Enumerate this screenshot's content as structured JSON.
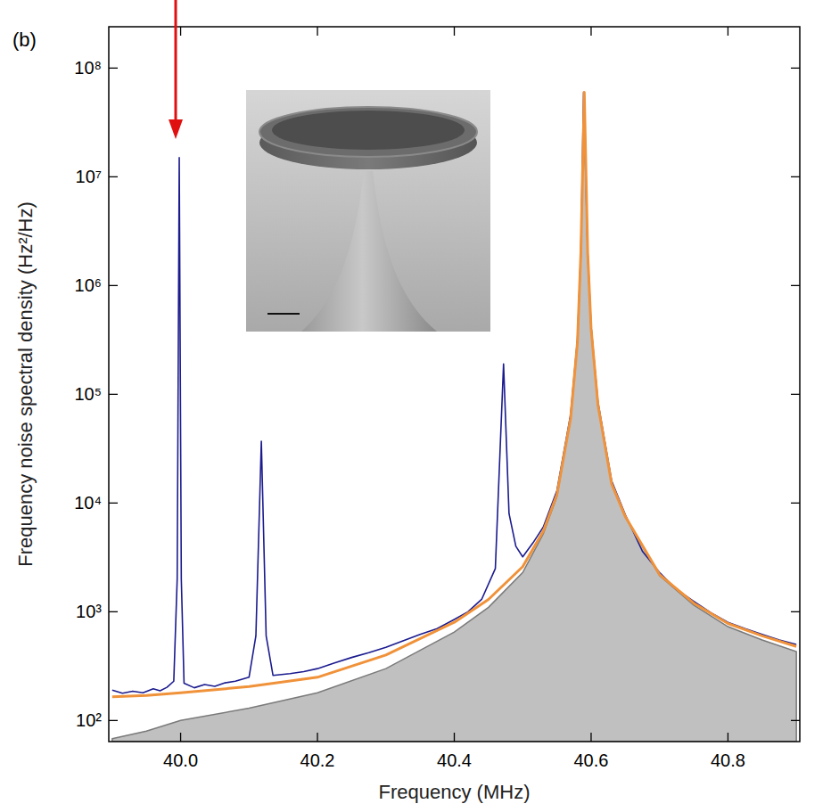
{
  "chart_data": {
    "type": "line",
    "annotations": [
      "(b)"
    ],
    "x_label": "Frequency (MHz)",
    "y_label": "Frequency noise spectral density (Hz²/Hz)",
    "log": "y",
    "grid": false,
    "xlim": [
      39.895,
      40.905
    ],
    "ylim": [
      64,
      240000000
    ],
    "xticks": [
      {
        "value": 40.0,
        "label": "40.0"
      },
      {
        "value": 40.2,
        "label": "40.2"
      },
      {
        "value": 40.4,
        "label": "40.4"
      },
      {
        "value": 40.6,
        "label": "40.6"
      },
      {
        "value": 40.8,
        "label": "40.8"
      }
    ],
    "yticks": [
      {
        "value": 100,
        "label": "10²"
      },
      {
        "value": 1000,
        "label": "10³"
      },
      {
        "value": 10000,
        "label": "10⁴"
      },
      {
        "value": 100000,
        "label": "10⁵"
      },
      {
        "value": 1000000,
        "label": "10⁶"
      },
      {
        "value": 10000000,
        "label": "10⁷"
      },
      {
        "value": 100000000,
        "label": "10⁸"
      }
    ],
    "series": [
      {
        "type": "area",
        "color": "#c0c0c0",
        "x": [
          39.9,
          39.95,
          40.0,
          40.1,
          40.2,
          40.3,
          40.4,
          40.45,
          40.5,
          40.53,
          40.55,
          40.57,
          40.58,
          40.585,
          40.59,
          40.595,
          40.6,
          40.61,
          40.63,
          40.65,
          40.7,
          40.75,
          40.8,
          40.85,
          40.9
        ],
        "values": [
          68,
          80,
          100,
          130,
          180,
          300,
          650,
          1100,
          2300,
          5200,
          11500,
          60000,
          300000,
          2000000,
          60000000,
          2000000,
          400000,
          80000,
          15000,
          7400,
          2150,
          1150,
          730,
          550,
          430
        ]
      },
      {
        "type": "line",
        "color": "#1b1b8f",
        "x": [
          39.9,
          39.915,
          39.93,
          39.945,
          39.96,
          39.97,
          39.98,
          39.99,
          39.995,
          39.998,
          40.001,
          40.005,
          40.02,
          40.035,
          40.05,
          40.065,
          40.08,
          40.1,
          40.11,
          40.118,
          40.125,
          40.135,
          40.16,
          40.18,
          40.2,
          40.225,
          40.25,
          40.275,
          40.3,
          40.325,
          40.35,
          40.375,
          40.4,
          40.42,
          40.44,
          40.46,
          40.472,
          40.48,
          40.49,
          40.5,
          40.515,
          40.53,
          40.55,
          40.57,
          40.58,
          40.585,
          40.589,
          40.595,
          40.6,
          40.61,
          40.63,
          40.65,
          40.675,
          40.7,
          40.725,
          40.75,
          40.775,
          40.8,
          40.825,
          40.85,
          40.875,
          40.9
        ],
        "values": [
          190,
          178,
          186,
          180,
          196,
          188,
          202,
          230,
          2000,
          15000000,
          2000,
          220,
          200,
          214,
          206,
          222,
          230,
          250,
          600,
          37000,
          600,
          260,
          270,
          282,
          300,
          338,
          380,
          420,
          470,
          540,
          620,
          700,
          850,
          1000,
          1300,
          2500,
          190000,
          8000,
          4000,
          3200,
          4300,
          6000,
          13000,
          65000,
          320000,
          2000000,
          60000000,
          2000000,
          420000,
          85000,
          16000,
          7800,
          3600,
          2300,
          1600,
          1250,
          980,
          800,
          700,
          620,
          550,
          500
        ]
      },
      {
        "type": "line",
        "color": "#f0923a",
        "x": [
          39.9,
          39.95,
          40.0,
          40.1,
          40.2,
          40.3,
          40.4,
          40.45,
          40.5,
          40.53,
          40.55,
          40.57,
          40.58,
          40.585,
          40.59,
          40.595,
          40.6,
          40.61,
          40.63,
          40.65,
          40.7,
          40.75,
          40.8,
          40.85,
          40.9
        ],
        "values": [
          165,
          170,
          180,
          205,
          250,
          400,
          800,
          1300,
          2600,
          5500,
          12000,
          60000,
          300000,
          2000000,
          60000000,
          2000000,
          400000,
          80000,
          15000,
          7500,
          2200,
          1200,
          780,
          600,
          480
        ]
      }
    ]
  }
}
